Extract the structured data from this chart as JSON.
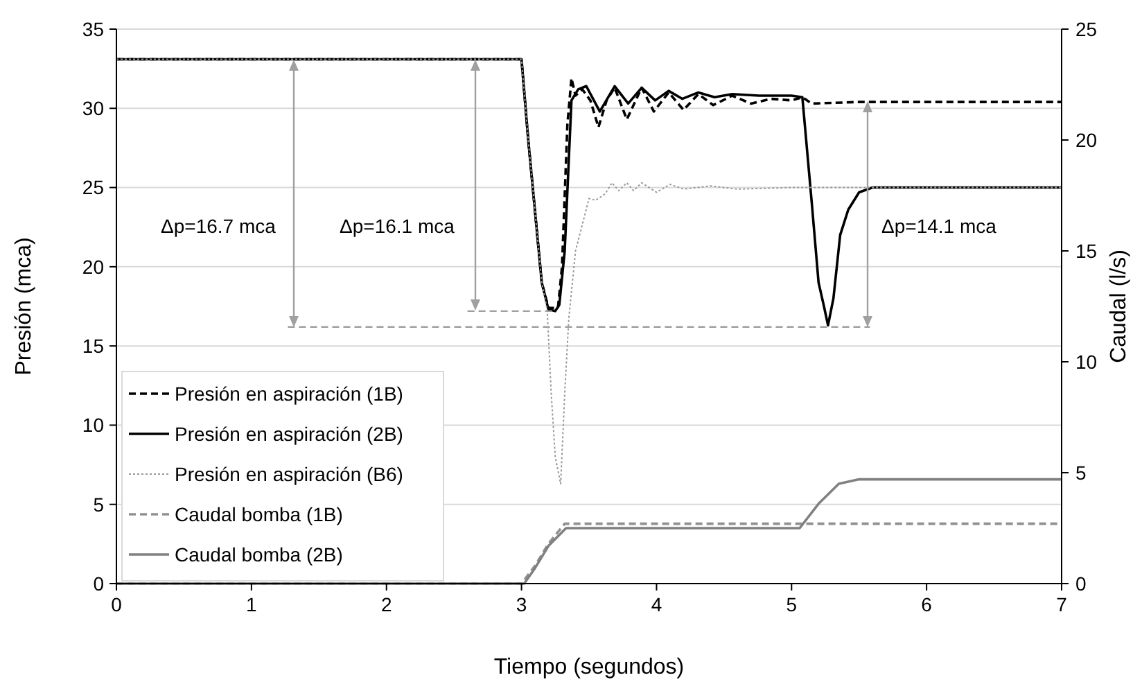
{
  "chart_data": {
    "type": "line",
    "xlabel": "Tiempo (segundos)",
    "ylabel": "Presión (mca)",
    "y2label": "Caudal (l/s)",
    "xlim": [
      0,
      7
    ],
    "xticks": [
      0,
      1,
      2,
      3,
      4,
      5,
      6,
      7
    ],
    "ylim": [
      0,
      35
    ],
    "yticks": [
      0,
      5,
      10,
      15,
      20,
      25,
      30,
      35
    ],
    "y2lim": [
      0,
      25
    ],
    "y2ticks": [
      0,
      5,
      10,
      15,
      20,
      25
    ],
    "grid": "y",
    "legend": "bottom left",
    "marker": "none",
    "series": [
      {
        "name": "Presión en aspiración (1B)",
        "color": "#000000",
        "line_style": "dashed",
        "x": [
          0,
          3.0,
          3.05,
          3.15,
          3.2,
          3.27,
          3.3,
          3.34,
          3.37,
          3.4,
          3.45,
          3.51,
          3.57,
          3.63,
          3.69,
          3.78,
          3.89,
          3.98,
          4.09,
          4.2,
          4.31,
          4.42,
          4.56,
          4.7,
          4.85,
          5.0,
          5.08,
          5.15,
          5.5,
          7
        ],
        "values": [
          33.1,
          33.1,
          28,
          19,
          17.4,
          17.4,
          20,
          29,
          31.9,
          30.8,
          31.2,
          30.5,
          28.8,
          30.5,
          31.3,
          29.3,
          31.3,
          29.8,
          31.0,
          29.9,
          30.9,
          30.2,
          30.8,
          30.3,
          30.6,
          30.5,
          30.7,
          30.3,
          30.4,
          30.4
        ]
      },
      {
        "name": "Presión en aspiración (2B)",
        "color": "#000000",
        "line_style": "solid",
        "x": [
          0,
          3.0,
          3.05,
          3.15,
          3.2,
          3.25,
          3.28,
          3.32,
          3.37,
          3.42,
          3.48,
          3.58,
          3.69,
          3.79,
          3.89,
          3.99,
          4.09,
          4.19,
          4.31,
          4.43,
          4.56,
          4.76,
          5.0,
          5.08,
          5.15,
          5.2,
          5.24,
          5.27,
          5.31,
          5.36,
          5.42,
          5.5,
          5.6,
          7
        ],
        "values": [
          33.1,
          33.1,
          28,
          19,
          17.3,
          17.2,
          17.6,
          21,
          30.5,
          31.2,
          31.4,
          29.8,
          31.4,
          30.3,
          31.3,
          30.5,
          31.1,
          30.6,
          31.0,
          30.7,
          30.9,
          30.8,
          30.8,
          30.7,
          24,
          19,
          17.5,
          16.3,
          18,
          22,
          23.6,
          24.7,
          25.0,
          25.0
        ]
      },
      {
        "name": "Presión en aspiración (B6)",
        "color": "#999999",
        "line_style": "dotted",
        "x": [
          0,
          3.0,
          3.05,
          3.15,
          3.19,
          3.22,
          3.25,
          3.29,
          3.32,
          3.35,
          3.4,
          3.5,
          3.55,
          3.62,
          3.67,
          3.72,
          3.78,
          3.83,
          3.89,
          4.0,
          4.1,
          4.2,
          4.4,
          4.6,
          5.0,
          7
        ],
        "values": [
          33.1,
          33.1,
          28,
          19,
          17.3,
          12,
          8.0,
          6.3,
          12,
          16.7,
          21,
          24.3,
          24.2,
          24.6,
          25.3,
          24.8,
          25.3,
          24.8,
          25.3,
          24.7,
          25.2,
          24.9,
          25.1,
          24.9,
          25.0,
          25.0
        ]
      },
      {
        "name": "Caudal bomba (1B)",
        "color": "#909090",
        "line_style": "dashed",
        "axis": "y2",
        "x": [
          0,
          3.0,
          3.1,
          3.2,
          3.32,
          7
        ],
        "values": [
          0,
          0,
          0.8,
          1.8,
          2.7,
          2.7
        ]
      },
      {
        "name": "Caudal bomba (2B)",
        "color": "#808080",
        "line_style": "solid",
        "axis": "y2",
        "x": [
          0,
          3.02,
          3.1,
          3.2,
          3.33,
          5.06,
          5.2,
          5.35,
          5.5,
          7
        ],
        "values": [
          0,
          0,
          0.7,
          1.7,
          2.5,
          2.5,
          3.6,
          4.5,
          4.7,
          4.7
        ]
      },
      {
        "color": "#a0a0a0",
        "line_style": "dashed",
        "x": [
          1.27,
          5.58
        ],
        "values": [
          16.2,
          16.2
        ]
      },
      {
        "color": "#a0a0a0",
        "line_style": "dashed",
        "x": [
          2.6,
          3.25
        ],
        "values": [
          17.2,
          17.2
        ]
      }
    ],
    "annotations": [
      "Δp=16.7 mca",
      "Δp=16.1 mca",
      "Δp=14.1 mca"
    ]
  }
}
